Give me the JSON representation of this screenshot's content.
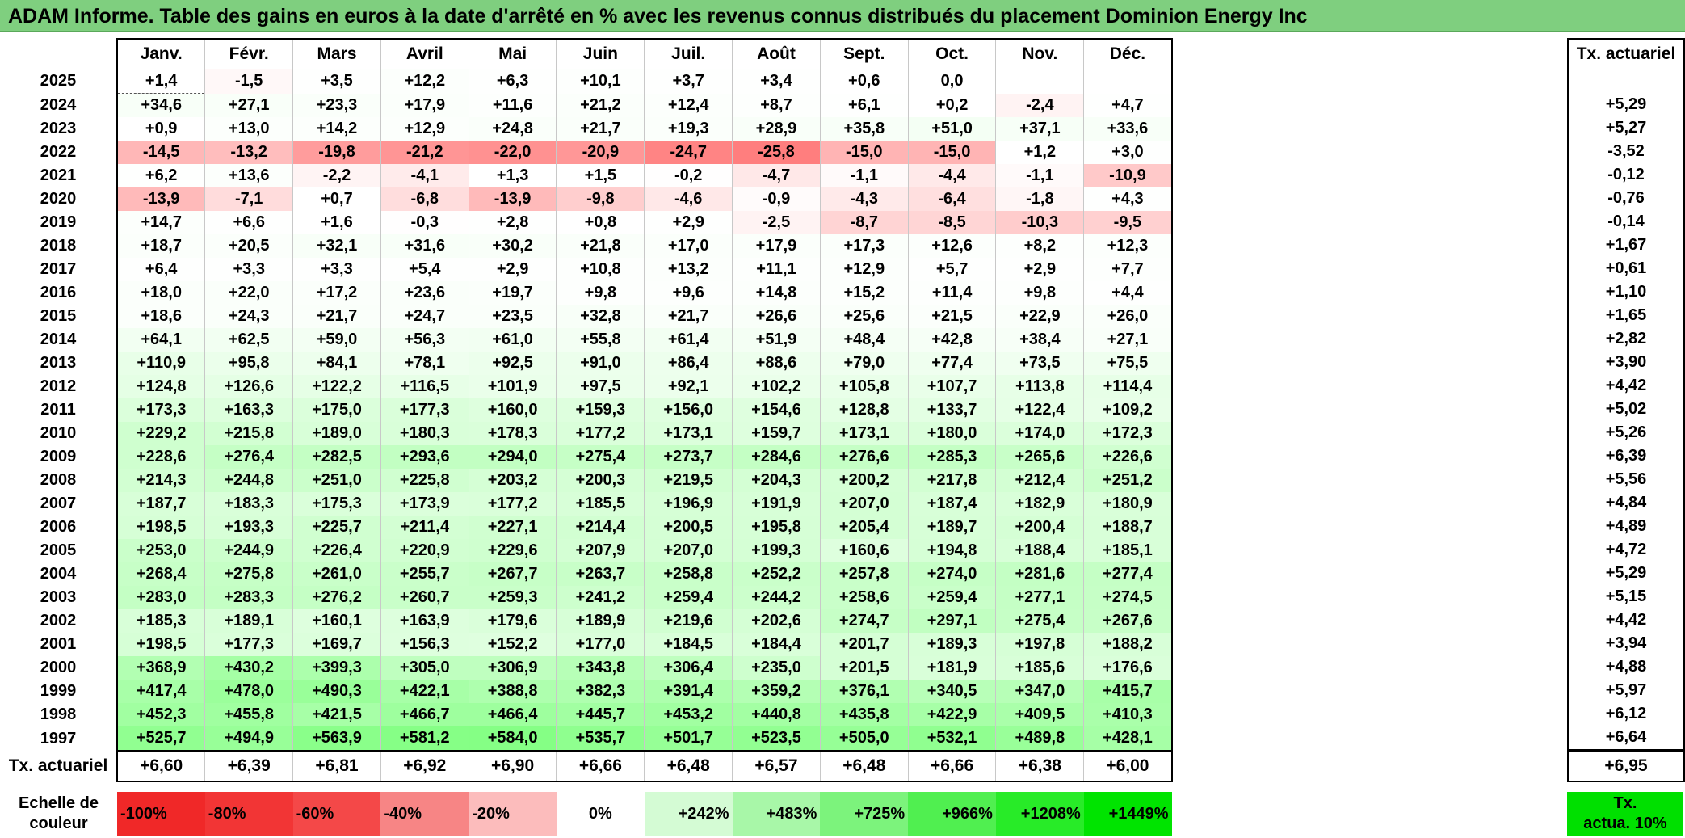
{
  "title": "ADAM Informe. Table des gains en euros à la date d'arrêté en % avec les revenus connus distribués du placement Dominion Energy Inc",
  "months": [
    "Janv.",
    "Févr.",
    "Mars",
    "Avril",
    "Mai",
    "Juin",
    "Juil.",
    "Août",
    "Sept.",
    "Oct.",
    "Nov.",
    "Déc."
  ],
  "side_header": "Tx. actuariel",
  "rows": [
    {
      "year": "2025",
      "values": [
        "+1,4",
        "-1,5",
        "+3,5",
        "+12,2",
        "+6,3",
        "+10,1",
        "+3,7",
        "+3,4",
        "+0,6",
        "0,0",
        "",
        ""
      ],
      "tx": ""
    },
    {
      "year": "2024",
      "values": [
        "+34,6",
        "+27,1",
        "+23,3",
        "+17,9",
        "+11,6",
        "+21,2",
        "+12,4",
        "+8,7",
        "+6,1",
        "+0,2",
        "-2,4",
        "+4,7"
      ],
      "tx": "+5,29"
    },
    {
      "year": "2023",
      "values": [
        "+0,9",
        "+13,0",
        "+14,2",
        "+12,9",
        "+24,8",
        "+21,7",
        "+19,3",
        "+28,9",
        "+35,8",
        "+51,0",
        "+37,1",
        "+33,6"
      ],
      "tx": "+5,27"
    },
    {
      "year": "2022",
      "values": [
        "-14,5",
        "-13,2",
        "-19,8",
        "-21,2",
        "-22,0",
        "-20,9",
        "-24,7",
        "-25,8",
        "-15,0",
        "-15,0",
        "+1,2",
        "+3,0"
      ],
      "tx": "-3,52"
    },
    {
      "year": "2021",
      "values": [
        "+6,2",
        "+13,6",
        "-2,2",
        "-4,1",
        "+1,3",
        "+1,5",
        "-0,2",
        "-4,7",
        "-1,1",
        "-4,4",
        "-1,1",
        "-10,9"
      ],
      "tx": "-0,12"
    },
    {
      "year": "2020",
      "values": [
        "-13,9",
        "-7,1",
        "+0,7",
        "-6,8",
        "-13,9",
        "-9,8",
        "-4,6",
        "-0,9",
        "-4,3",
        "-6,4",
        "-1,8",
        "+4,3"
      ],
      "tx": "-0,76"
    },
    {
      "year": "2019",
      "values": [
        "+14,7",
        "+6,6",
        "+1,6",
        "-0,3",
        "+2,8",
        "+0,8",
        "+2,9",
        "-2,5",
        "-8,7",
        "-8,5",
        "-10,3",
        "-9,5"
      ],
      "tx": "-0,14"
    },
    {
      "year": "2018",
      "values": [
        "+18,7",
        "+20,5",
        "+32,1",
        "+31,6",
        "+30,2",
        "+21,8",
        "+17,0",
        "+17,9",
        "+17,3",
        "+12,6",
        "+8,2",
        "+12,3"
      ],
      "tx": "+1,67"
    },
    {
      "year": "2017",
      "values": [
        "+6,4",
        "+3,3",
        "+3,3",
        "+5,4",
        "+2,9",
        "+10,8",
        "+13,2",
        "+11,1",
        "+12,9",
        "+5,7",
        "+2,9",
        "+7,7"
      ],
      "tx": "+0,61"
    },
    {
      "year": "2016",
      "values": [
        "+18,0",
        "+22,0",
        "+17,2",
        "+23,6",
        "+19,7",
        "+9,8",
        "+9,6",
        "+14,8",
        "+15,2",
        "+11,4",
        "+9,8",
        "+4,4"
      ],
      "tx": "+1,10"
    },
    {
      "year": "2015",
      "values": [
        "+18,6",
        "+24,3",
        "+21,7",
        "+24,7",
        "+23,5",
        "+32,8",
        "+21,7",
        "+26,6",
        "+25,6",
        "+21,5",
        "+22,9",
        "+26,0"
      ],
      "tx": "+1,65"
    },
    {
      "year": "2014",
      "values": [
        "+64,1",
        "+62,5",
        "+59,0",
        "+56,3",
        "+61,0",
        "+55,8",
        "+61,4",
        "+51,9",
        "+48,4",
        "+42,8",
        "+38,4",
        "+27,1"
      ],
      "tx": "+2,82"
    },
    {
      "year": "2013",
      "values": [
        "+110,9",
        "+95,8",
        "+84,1",
        "+78,1",
        "+92,5",
        "+91,0",
        "+86,4",
        "+88,6",
        "+79,0",
        "+77,4",
        "+73,5",
        "+75,5"
      ],
      "tx": "+3,90"
    },
    {
      "year": "2012",
      "values": [
        "+124,8",
        "+126,6",
        "+122,2",
        "+116,5",
        "+101,9",
        "+97,5",
        "+92,1",
        "+102,2",
        "+105,8",
        "+107,7",
        "+113,8",
        "+114,4"
      ],
      "tx": "+4,42"
    },
    {
      "year": "2011",
      "values": [
        "+173,3",
        "+163,3",
        "+175,0",
        "+177,3",
        "+160,0",
        "+159,3",
        "+156,0",
        "+154,6",
        "+128,8",
        "+133,7",
        "+122,4",
        "+109,2"
      ],
      "tx": "+5,02"
    },
    {
      "year": "2010",
      "values": [
        "+229,2",
        "+215,8",
        "+189,0",
        "+180,3",
        "+178,3",
        "+177,2",
        "+173,1",
        "+159,7",
        "+173,1",
        "+180,0",
        "+174,0",
        "+172,3"
      ],
      "tx": "+5,26"
    },
    {
      "year": "2009",
      "values": [
        "+228,6",
        "+276,4",
        "+282,5",
        "+293,6",
        "+294,0",
        "+275,4",
        "+273,7",
        "+284,6",
        "+276,6",
        "+285,3",
        "+265,6",
        "+226,6"
      ],
      "tx": "+6,39"
    },
    {
      "year": "2008",
      "values": [
        "+214,3",
        "+244,8",
        "+251,0",
        "+225,8",
        "+203,2",
        "+200,3",
        "+219,5",
        "+204,3",
        "+200,2",
        "+217,8",
        "+212,4",
        "+251,2"
      ],
      "tx": "+5,56"
    },
    {
      "year": "2007",
      "values": [
        "+187,7",
        "+183,3",
        "+175,3",
        "+173,9",
        "+177,2",
        "+185,5",
        "+196,9",
        "+191,9",
        "+207,0",
        "+187,4",
        "+182,9",
        "+180,9"
      ],
      "tx": "+4,84"
    },
    {
      "year": "2006",
      "values": [
        "+198,5",
        "+193,3",
        "+225,7",
        "+211,4",
        "+227,1",
        "+214,4",
        "+200,5",
        "+195,8",
        "+205,4",
        "+189,7",
        "+200,4",
        "+188,7"
      ],
      "tx": "+4,89"
    },
    {
      "year": "2005",
      "values": [
        "+253,0",
        "+244,9",
        "+226,4",
        "+220,9",
        "+229,6",
        "+207,9",
        "+207,0",
        "+199,3",
        "+160,6",
        "+194,8",
        "+188,4",
        "+185,1"
      ],
      "tx": "+4,72"
    },
    {
      "year": "2004",
      "values": [
        "+268,4",
        "+275,8",
        "+261,0",
        "+255,7",
        "+267,7",
        "+263,7",
        "+258,8",
        "+252,2",
        "+257,8",
        "+274,0",
        "+281,6",
        "+277,4"
      ],
      "tx": "+5,29"
    },
    {
      "year": "2003",
      "values": [
        "+283,0",
        "+283,3",
        "+276,2",
        "+260,7",
        "+259,3",
        "+241,2",
        "+259,4",
        "+244,2",
        "+258,6",
        "+259,4",
        "+277,1",
        "+274,5"
      ],
      "tx": "+5,15"
    },
    {
      "year": "2002",
      "values": [
        "+185,3",
        "+189,1",
        "+160,1",
        "+163,9",
        "+179,6",
        "+189,9",
        "+219,6",
        "+202,6",
        "+274,7",
        "+297,1",
        "+275,4",
        "+267,6"
      ],
      "tx": "+4,42"
    },
    {
      "year": "2001",
      "values": [
        "+198,5",
        "+177,3",
        "+169,7",
        "+156,3",
        "+152,2",
        "+177,0",
        "+184,5",
        "+184,4",
        "+201,7",
        "+189,3",
        "+197,8",
        "+188,2"
      ],
      "tx": "+3,94"
    },
    {
      "year": "2000",
      "values": [
        "+368,9",
        "+430,2",
        "+399,3",
        "+305,0",
        "+306,9",
        "+343,8",
        "+306,4",
        "+235,0",
        "+201,5",
        "+181,9",
        "+185,6",
        "+176,6"
      ],
      "tx": "+4,88"
    },
    {
      "year": "1999",
      "values": [
        "+417,4",
        "+478,0",
        "+490,3",
        "+422,1",
        "+388,8",
        "+382,3",
        "+391,4",
        "+359,2",
        "+376,1",
        "+340,5",
        "+347,0",
        "+415,7"
      ],
      "tx": "+5,97"
    },
    {
      "year": "1998",
      "values": [
        "+452,3",
        "+455,8",
        "+421,5",
        "+466,7",
        "+466,4",
        "+445,7",
        "+453,2",
        "+440,8",
        "+435,8",
        "+422,9",
        "+409,5",
        "+410,3"
      ],
      "tx": "+6,12"
    },
    {
      "year": "1997",
      "values": [
        "+525,7",
        "+494,9",
        "+563,9",
        "+581,2",
        "+584,0",
        "+535,7",
        "+501,7",
        "+523,5",
        "+505,0",
        "+532,1",
        "+489,8",
        "+428,1"
      ],
      "tx": "+6,64"
    }
  ],
  "footer": {
    "label": "Tx. actuariel",
    "values": [
      "+6,60",
      "+6,39",
      "+6,81",
      "+6,92",
      "+6,90",
      "+6,66",
      "+6,48",
      "+6,57",
      "+6,48",
      "+6,66",
      "+6,38",
      "+6,00"
    ],
    "total": "+6,95"
  },
  "scale": {
    "label_line1": "Echelle de",
    "label_line2": "couleur",
    "items": [
      {
        "label": "-100%",
        "color": "#f02828"
      },
      {
        "label": "-80%",
        "color": "#f23535"
      },
      {
        "label": "-60%",
        "color": "#f44848"
      },
      {
        "label": "-40%",
        "color": "#f78585"
      },
      {
        "label": "-20%",
        "color": "#fcbcbc"
      },
      {
        "label": "0%",
        "color": "#ffffff"
      },
      {
        "label": "+242%",
        "color": "#d4fbd4"
      },
      {
        "label": "+483%",
        "color": "#a8f7a8"
      },
      {
        "label": "+725%",
        "color": "#7cf37c"
      },
      {
        "label": "+966%",
        "color": "#50ef50"
      },
      {
        "label": "+1208%",
        "color": "#28eb28"
      },
      {
        "label": "+1449%",
        "color": "#00e400"
      }
    ],
    "side_line1": "Tx.",
    "side_line2": "actua. 10%",
    "side_color": "#00e000"
  },
  "colors": {
    "title_bg": "#7fcf7f",
    "neg_scale_min": "-30",
    "pos_scale_max": "600"
  }
}
